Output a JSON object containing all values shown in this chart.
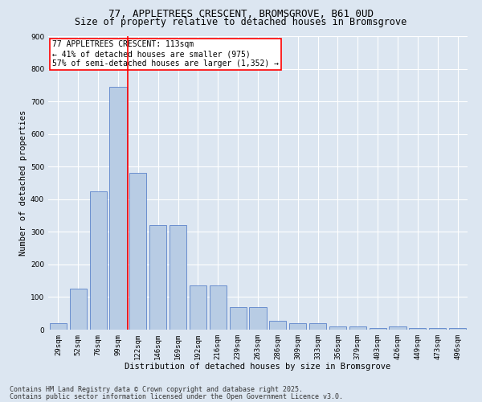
{
  "title_line1": "77, APPLETREES CRESCENT, BROMSGROVE, B61 0UD",
  "title_line2": "Size of property relative to detached houses in Bromsgrove",
  "xlabel": "Distribution of detached houses by size in Bromsgrove",
  "ylabel": "Number of detached properties",
  "categories": [
    "29sqm",
    "52sqm",
    "76sqm",
    "99sqm",
    "122sqm",
    "146sqm",
    "169sqm",
    "192sqm",
    "216sqm",
    "239sqm",
    "263sqm",
    "286sqm",
    "309sqm",
    "333sqm",
    "356sqm",
    "379sqm",
    "403sqm",
    "426sqm",
    "449sqm",
    "473sqm",
    "496sqm"
  ],
  "values": [
    20,
    125,
    425,
    745,
    480,
    320,
    320,
    135,
    135,
    70,
    70,
    28,
    20,
    20,
    10,
    10,
    5,
    10,
    5,
    5,
    5
  ],
  "bar_color": "#b8cce4",
  "bar_edge_color": "#4472c4",
  "property_line_color": "red",
  "annotation_text": "77 APPLETREES CRESCENT: 113sqm\n← 41% of detached houses are smaller (975)\n57% of semi-detached houses are larger (1,352) →",
  "annotation_box_color": "white",
  "annotation_box_edge": "red",
  "bg_color": "#dce6f1",
  "plot_bg_color": "#dce6f1",
  "grid_color": "white",
  "ylim": [
    0,
    900
  ],
  "yticks": [
    0,
    100,
    200,
    300,
    400,
    500,
    600,
    700,
    800,
    900
  ],
  "footnote_line1": "Contains HM Land Registry data © Crown copyright and database right 2025.",
  "footnote_line2": "Contains public sector information licensed under the Open Government Licence v3.0.",
  "title_fontsize": 9,
  "subtitle_fontsize": 8.5,
  "axis_label_fontsize": 7.5,
  "tick_fontsize": 6.5,
  "annotation_fontsize": 7,
  "footnote_fontsize": 6
}
